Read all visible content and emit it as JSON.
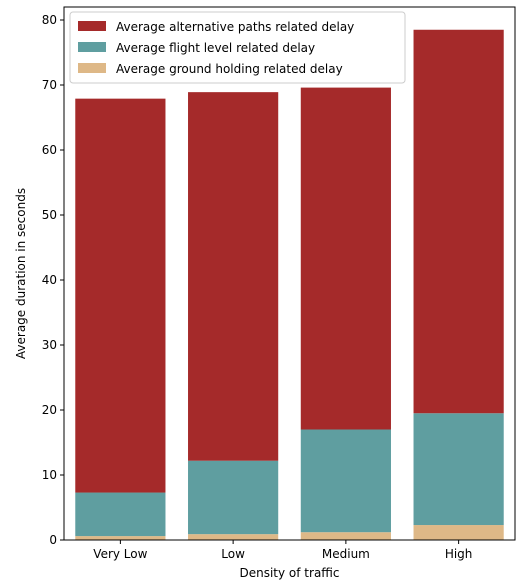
{
  "chart_data": {
    "type": "bar",
    "stacked": true,
    "categories": [
      "Very Low",
      "Low",
      "Medium",
      "High"
    ],
    "series": [
      {
        "name": "Average ground holding related delay",
        "color": "#deb887",
        "values": [
          0.6,
          0.9,
          1.2,
          2.3
        ]
      },
      {
        "name": "Average flight level related delay",
        "color": "#5f9ea0",
        "values": [
          6.7,
          11.3,
          15.8,
          17.2
        ]
      },
      {
        "name": "Average alternative paths related delay",
        "color": "#a52a2a",
        "values": [
          60.6,
          56.7,
          52.6,
          59.0
        ]
      }
    ],
    "legend_order": [
      2,
      1,
      0
    ],
    "legend_position": "top-left",
    "title": "",
    "xlabel": "Density of traffic",
    "ylabel": "Average duration in seconds",
    "ylim": [
      0,
      82
    ],
    "yticks": [
      0,
      10,
      20,
      30,
      40,
      50,
      60,
      70,
      80
    ],
    "grid": false
  }
}
